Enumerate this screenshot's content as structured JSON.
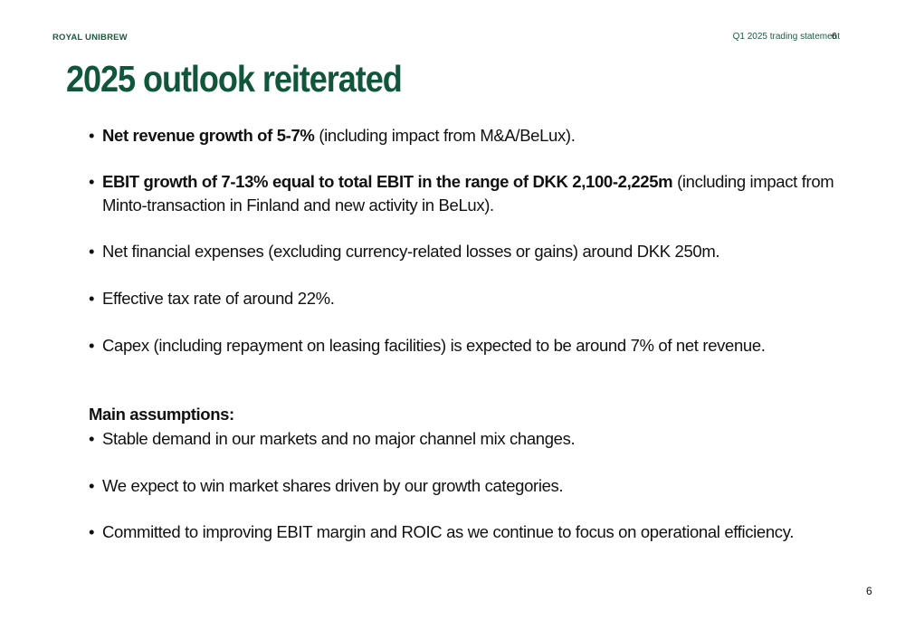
{
  "header": {
    "brand": "ROYAL UNIBREW",
    "report": "Q1 2025 trading statement",
    "page": "6"
  },
  "title": "2025 outlook reiterated",
  "outlook_bullets": [
    {
      "bold": "Net revenue growth of 5-7%",
      "text": " (including impact from M&A/BeLux)."
    },
    {
      "bold": "EBIT growth of 7-13% equal to total EBIT in the range of DKK 2,100-2,225m",
      "text": " (including impact from Minto-transaction in Finland and new activity in BeLux)."
    },
    {
      "bold": "",
      "text": "Net financial expenses (excluding currency-related losses or gains) around DKK 250m."
    },
    {
      "bold": "",
      "text": "Effective tax rate of around 22%."
    },
    {
      "bold": "",
      "text": "Capex (including repayment on leasing facilities) is expected to be around 7% of net revenue."
    }
  ],
  "assumptions": {
    "heading": "Main assumptions:",
    "items": [
      "Stable demand in our markets and no major channel mix changes.",
      "We expect to win market shares driven by our growth categories.",
      "Committed to improving EBIT margin and ROIC as we continue to focus on operational efficiency."
    ]
  },
  "bullet_symbol": "•",
  "footer": {
    "page": "6"
  },
  "colors": {
    "brand_green": "#1f5a3f",
    "title_green": "#11553b",
    "text": "#111111"
  }
}
